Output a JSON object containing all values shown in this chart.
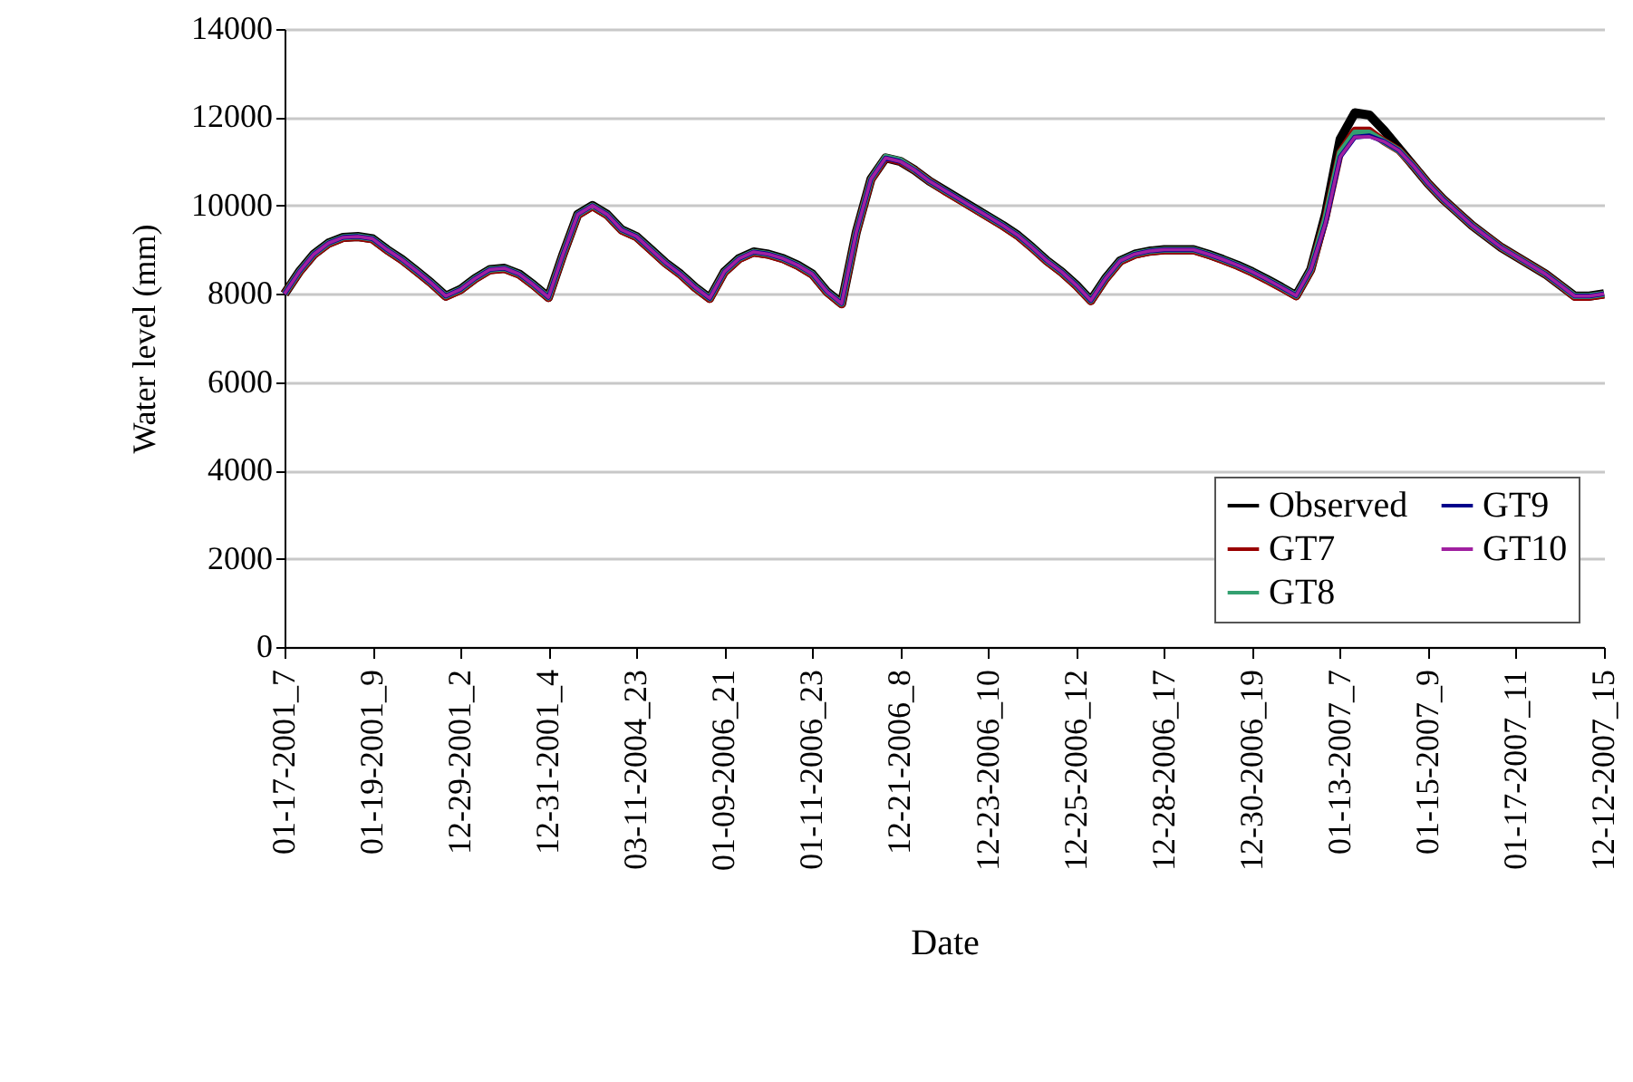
{
  "chart_data": {
    "type": "line",
    "xlabel": "Date",
    "ylabel": "Water level (mm)",
    "categories": [
      "01-17-2001_7",
      null,
      null,
      null,
      null,
      null,
      "01-19-2001_9",
      null,
      null,
      null,
      null,
      null,
      "12-29-2001_2",
      null,
      null,
      null,
      null,
      null,
      "12-31-2001_4",
      null,
      null,
      null,
      null,
      null,
      "03-11-2004_23",
      null,
      null,
      null,
      null,
      null,
      "01-09-2006_21",
      null,
      null,
      null,
      null,
      null,
      "01-11-2006_23",
      null,
      null,
      null,
      null,
      null,
      "12-21-2006_8",
      null,
      null,
      null,
      null,
      null,
      "12-23-2006_10",
      null,
      null,
      null,
      null,
      null,
      "12-25-2006_12",
      null,
      null,
      null,
      null,
      null,
      "12-28-2006_17",
      null,
      null,
      null,
      null,
      null,
      "12-30-2006_19",
      null,
      null,
      null,
      null,
      null,
      "01-13-2007_7",
      null,
      null,
      null,
      null,
      null,
      "01-15-2007_9",
      null,
      null,
      null,
      null,
      null,
      "01-17-2007_11",
      null,
      null,
      null,
      null,
      null,
      "12-12-2007_15"
    ],
    "series": [
      {
        "name": "Observed",
        "color": "#000000",
        "values": [
          8000,
          8500,
          8900,
          9150,
          9280,
          9300,
          9250,
          9000,
          8780,
          8520,
          8250,
          7950,
          8100,
          8350,
          8550,
          8580,
          8450,
          8200,
          7920,
          8900,
          9800,
          10000,
          9800,
          9450,
          9300,
          9000,
          8700,
          8450,
          8150,
          7900,
          8500,
          8800,
          8950,
          8900,
          8800,
          8650,
          8450,
          8050,
          7780,
          9400,
          10600,
          11080,
          11000,
          10800,
          10550,
          10350,
          10150,
          9950,
          9750,
          9550,
          9330,
          9050,
          8750,
          8500,
          8200,
          7850,
          8350,
          8750,
          8900,
          8970,
          9000,
          9000,
          9000,
          8900,
          8780,
          8650,
          8500,
          8330,
          8150,
          7960,
          8550,
          9800,
          11500,
          12100,
          12050,
          11700,
          11300,
          10900,
          10500,
          10150,
          9850,
          9550,
          9300,
          9050,
          8850,
          8650,
          8450,
          8200,
          7950,
          7950,
          8000
        ]
      },
      {
        "name": "GT7",
        "color": "#990000",
        "values": [
          8000,
          8480,
          8880,
          9130,
          9260,
          9280,
          9230,
          8980,
          8760,
          8500,
          8230,
          7930,
          8080,
          8330,
          8530,
          8560,
          8430,
          8180,
          7900,
          8880,
          9780,
          9980,
          9780,
          9430,
          9280,
          8980,
          8680,
          8430,
          8130,
          7880,
          8480,
          8780,
          8930,
          8880,
          8780,
          8630,
          8430,
          8030,
          7760,
          9380,
          10580,
          11080,
          11000,
          10800,
          10550,
          10330,
          10130,
          9930,
          9730,
          9530,
          9310,
          9030,
          8730,
          8480,
          8180,
          7830,
          8330,
          8730,
          8880,
          8950,
          8980,
          8980,
          8980,
          8880,
          8760,
          8630,
          8480,
          8310,
          8130,
          7940,
          8530,
          9700,
          11200,
          11700,
          11700,
          11450,
          11250,
          10900,
          10500,
          10150,
          9850,
          9550,
          9300,
          9050,
          8850,
          8650,
          8450,
          8200,
          7930,
          7930,
          7980
        ]
      },
      {
        "name": "GT8",
        "color": "#33a070",
        "values": [
          8000,
          8500,
          8900,
          9150,
          9280,
          9300,
          9250,
          9000,
          8780,
          8520,
          8250,
          7950,
          8100,
          8350,
          8550,
          8580,
          8450,
          8200,
          7920,
          8900,
          9800,
          10000,
          9800,
          9450,
          9300,
          9000,
          8700,
          8450,
          8150,
          7900,
          8500,
          8800,
          8950,
          8900,
          8800,
          8650,
          8450,
          8050,
          7780,
          9400,
          10600,
          11100,
          11020,
          10800,
          10550,
          10350,
          10150,
          9950,
          9750,
          9550,
          9330,
          9050,
          8750,
          8500,
          8200,
          7850,
          8350,
          8750,
          8900,
          8970,
          9000,
          9000,
          9000,
          8900,
          8780,
          8650,
          8500,
          8330,
          8150,
          7960,
          8550,
          9700,
          11200,
          11650,
          11650,
          11450,
          11250,
          10900,
          10500,
          10150,
          9850,
          9550,
          9300,
          9050,
          8850,
          8650,
          8450,
          8200,
          7950,
          7950,
          8000
        ]
      },
      {
        "name": "GT9",
        "color": "#00008b",
        "values": [
          8000,
          8500,
          8900,
          9150,
          9280,
          9300,
          9250,
          9000,
          8780,
          8520,
          8250,
          7950,
          8100,
          8350,
          8550,
          8580,
          8450,
          8200,
          7920,
          8900,
          9800,
          10000,
          9800,
          9450,
          9300,
          9000,
          8700,
          8450,
          8150,
          7900,
          8500,
          8800,
          8950,
          8900,
          8800,
          8650,
          8450,
          8050,
          7780,
          9400,
          10600,
          11080,
          11000,
          10800,
          10550,
          10350,
          10150,
          9950,
          9750,
          9550,
          9330,
          9050,
          8750,
          8500,
          8200,
          7850,
          8350,
          8750,
          8900,
          8970,
          9000,
          9000,
          9000,
          8900,
          8780,
          8650,
          8500,
          8330,
          8150,
          7960,
          8550,
          9600,
          11100,
          11550,
          11580,
          11450,
          11250,
          10900,
          10500,
          10150,
          9850,
          9550,
          9300,
          9050,
          8850,
          8650,
          8450,
          8200,
          7950,
          7950,
          8000
        ]
      },
      {
        "name": "GT10",
        "color": "#a020a0",
        "values": [
          8000,
          8500,
          8900,
          9150,
          9280,
          9300,
          9250,
          9000,
          8780,
          8520,
          8250,
          7950,
          8100,
          8350,
          8550,
          8580,
          8450,
          8200,
          7920,
          8900,
          9800,
          10000,
          9800,
          9450,
          9300,
          9000,
          8700,
          8450,
          8150,
          7900,
          8500,
          8800,
          8950,
          8900,
          8800,
          8650,
          8450,
          8050,
          7780,
          9400,
          10600,
          11080,
          11000,
          10800,
          10550,
          10350,
          10150,
          9950,
          9750,
          9550,
          9330,
          9050,
          8750,
          8500,
          8200,
          7850,
          8350,
          8750,
          8900,
          8970,
          9000,
          9000,
          9000,
          8900,
          8780,
          8650,
          8500,
          8330,
          8150,
          7960,
          8550,
          9600,
          11100,
          11550,
          11560,
          11450,
          11250,
          10900,
          10500,
          10150,
          9850,
          9550,
          9300,
          9050,
          8850,
          8650,
          8450,
          8200,
          7950,
          7950,
          8000
        ]
      }
    ],
    "ylim": [
      0,
      14000
    ],
    "yticks": [
      0,
      2000,
      4000,
      6000,
      8000,
      10000,
      12000,
      14000
    ],
    "grid": "y",
    "legend": "bottom right"
  }
}
